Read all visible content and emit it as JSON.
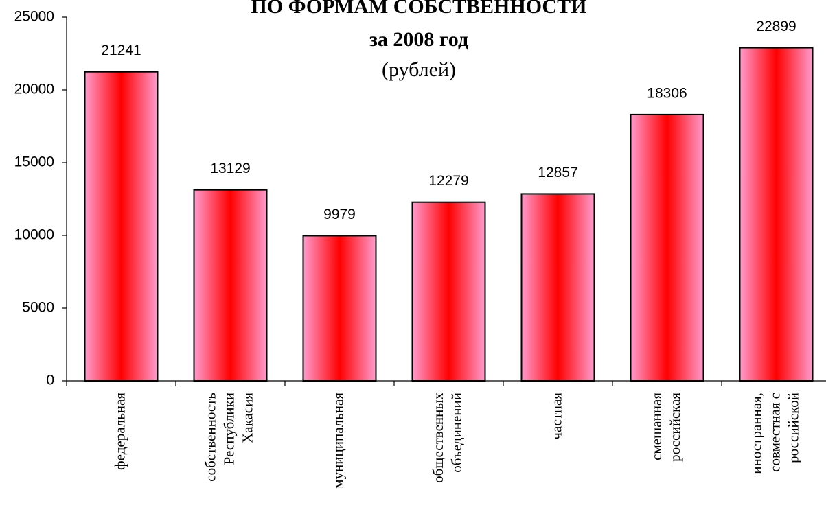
{
  "chart_data": {
    "type": "bar",
    "title": "ПО ФОРМАМ СОБСТВЕННОСТИ",
    "subtitle": "за 2008 год",
    "note": "(рублей)",
    "categories": [
      [
        "федеральная"
      ],
      [
        "собственность",
        "Республики",
        "Хакасия"
      ],
      [
        "муниципальная"
      ],
      [
        "общественных",
        "объединений"
      ],
      [
        "частная"
      ],
      [
        "смешанная",
        "российская"
      ],
      [
        "иностранная,",
        "совместная с",
        "российской"
      ]
    ],
    "values": [
      21241,
      13129,
      9979,
      12279,
      12857,
      18306,
      22899
    ],
    "color": "#ff0000",
    "ylim": [
      0,
      25000
    ],
    "yticks": [
      0,
      5000,
      10000,
      15000,
      20000,
      25000
    ],
    "grid": false
  }
}
